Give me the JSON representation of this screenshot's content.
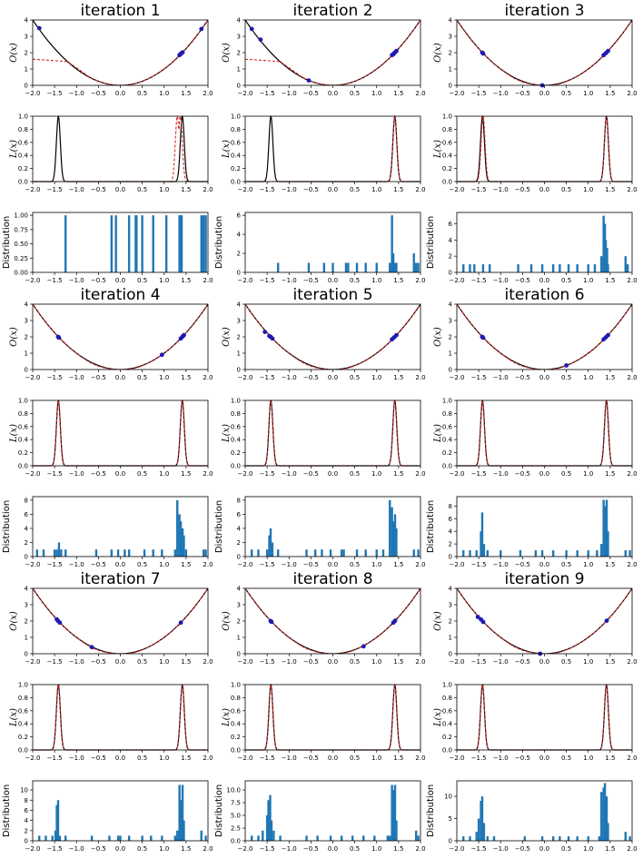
{
  "figure": {
    "description_free": true,
    "colors": {
      "true": "#000000",
      "surrogate": "#d62728",
      "points": "#1f1ab0",
      "bars": "#1f77b4"
    }
  },
  "chart_data": {
    "type": "grid",
    "xlim": [
      -2.0,
      2.0
    ],
    "x_ticks": [
      "−2.0",
      "−1.5",
      "−1.0",
      "−0.5",
      "0.0",
      "0.5",
      "1.0",
      "1.5",
      "2.0"
    ],
    "row_types": [
      "objective",
      "likelihood",
      "distribution"
    ],
    "objective_panel": {
      "ylabel": "O(x)",
      "ylim": [
        0,
        4
      ],
      "y_ticks": [
        "0",
        "1",
        "2",
        "3",
        "4"
      ],
      "true_function": "x^2"
    },
    "likelihood_panel": {
      "ylabel": "L(x)",
      "ylim": [
        0,
        1
      ],
      "y_ticks": [
        "0.0",
        "0.2",
        "0.4",
        "0.6",
        "0.8",
        "1.0"
      ],
      "peaks": [
        -1.414,
        1.414
      ]
    },
    "distribution_panel": {
      "ylabel": "Distribution"
    },
    "iterations": [
      {
        "title": "iteration 1",
        "points": [
          [
            -1.85,
            3.5
          ],
          [
            1.35,
            1.85
          ],
          [
            1.37,
            1.9
          ],
          [
            1.4,
            1.98
          ],
          [
            1.42,
            2.02
          ],
          [
            1.85,
            3.45
          ]
        ],
        "surrogate_note": "flat_left",
        "likelihood_red": [
          1.3,
          1.37
        ],
        "dist_ylim": [
          0,
          1.05
        ],
        "dist_ticks": [
          0,
          0.25,
          0.5,
          0.75,
          1.0
        ],
        "dist_tick_labels": [
          "0.00",
          "0.25",
          "0.50",
          "0.75",
          "1.00"
        ],
        "bars": [
          [
            -1.25,
            1
          ],
          [
            -0.2,
            1
          ],
          [
            -0.1,
            1
          ],
          [
            0.2,
            1
          ],
          [
            0.35,
            1
          ],
          [
            0.37,
            1
          ],
          [
            0.5,
            1
          ],
          [
            0.75,
            1
          ],
          [
            1.05,
            1
          ],
          [
            1.35,
            1
          ],
          [
            1.37,
            1
          ],
          [
            1.4,
            1
          ],
          [
            1.85,
            1
          ],
          [
            1.9,
            1
          ],
          [
            1.95,
            1
          ]
        ]
      },
      {
        "title": "iteration 2",
        "points": [
          [
            -1.85,
            3.45
          ],
          [
            -1.65,
            2.8
          ],
          [
            -0.55,
            0.3
          ],
          [
            1.35,
            1.85
          ],
          [
            1.38,
            1.9
          ],
          [
            1.4,
            1.97
          ],
          [
            1.42,
            2.02
          ],
          [
            1.45,
            2.1
          ]
        ],
        "surrogate_note": "flat_left",
        "likelihood_red": [
          1.414
        ],
        "dist_ylim": [
          0,
          6.3
        ],
        "dist_ticks": [
          0,
          2,
          4,
          6
        ],
        "dist_tick_labels": [
          "0",
          "2",
          "4",
          "6"
        ],
        "bars": [
          [
            -1.25,
            1
          ],
          [
            -0.55,
            1
          ],
          [
            -0.2,
            1
          ],
          [
            0.0,
            1
          ],
          [
            0.3,
            1
          ],
          [
            0.35,
            1
          ],
          [
            0.55,
            1
          ],
          [
            0.75,
            1
          ],
          [
            1.0,
            1
          ],
          [
            1.3,
            1
          ],
          [
            1.35,
            6
          ],
          [
            1.38,
            2
          ],
          [
            1.42,
            1
          ],
          [
            1.45,
            1
          ],
          [
            1.85,
            2
          ],
          [
            1.9,
            1
          ],
          [
            1.95,
            1
          ]
        ]
      },
      {
        "title": "iteration 3",
        "points": [
          [
            -1.42,
            2.0
          ],
          [
            -1.4,
            1.95
          ],
          [
            -0.05,
            0.0
          ],
          [
            1.35,
            1.85
          ],
          [
            1.4,
            1.97
          ],
          [
            1.45,
            2.1
          ]
        ],
        "surrogate_note": "fit",
        "likelihood_red": [
          -1.4,
          1.414
        ],
        "dist_ylim": [
          0,
          7.4
        ],
        "dist_ticks": [
          0,
          2,
          4,
          6
        ],
        "dist_tick_labels": [
          "0",
          "2",
          "4",
          "6"
        ],
        "bars": [
          [
            -1.85,
            1
          ],
          [
            -1.7,
            1
          ],
          [
            -1.6,
            1
          ],
          [
            -1.4,
            1
          ],
          [
            -1.25,
            1
          ],
          [
            -0.6,
            1
          ],
          [
            -0.3,
            1
          ],
          [
            -0.05,
            1
          ],
          [
            0.2,
            1
          ],
          [
            0.35,
            1
          ],
          [
            0.55,
            1
          ],
          [
            0.75,
            1
          ],
          [
            1.0,
            1
          ],
          [
            1.15,
            1
          ],
          [
            1.3,
            2
          ],
          [
            1.35,
            7
          ],
          [
            1.38,
            6
          ],
          [
            1.4,
            4
          ],
          [
            1.43,
            3
          ],
          [
            1.45,
            1
          ],
          [
            1.85,
            2
          ],
          [
            1.9,
            1
          ]
        ]
      },
      {
        "title": "iteration 4",
        "points": [
          [
            -1.42,
            2.0
          ],
          [
            -1.4,
            1.95
          ],
          [
            0.95,
            0.9
          ],
          [
            1.38,
            1.9
          ],
          [
            1.42,
            2.02
          ],
          [
            1.45,
            2.1
          ]
        ],
        "surrogate_note": "fit",
        "likelihood_red": [
          -1.414,
          1.414
        ],
        "dist_ylim": [
          0,
          8.5
        ],
        "dist_ticks": [
          0,
          2,
          4,
          6,
          8
        ],
        "dist_tick_labels": [
          "0",
          "2",
          "4",
          "6",
          "8"
        ],
        "bars": [
          [
            -1.9,
            1
          ],
          [
            -1.75,
            1
          ],
          [
            -1.5,
            1
          ],
          [
            -1.45,
            1
          ],
          [
            -1.4,
            2
          ],
          [
            -1.35,
            1
          ],
          [
            -1.25,
            1
          ],
          [
            -0.55,
            1
          ],
          [
            -0.2,
            1
          ],
          [
            -0.05,
            1
          ],
          [
            0.1,
            1
          ],
          [
            0.2,
            1
          ],
          [
            0.55,
            1
          ],
          [
            0.75,
            1
          ],
          [
            0.95,
            1
          ],
          [
            1.25,
            1
          ],
          [
            1.3,
            8
          ],
          [
            1.35,
            6
          ],
          [
            1.38,
            5
          ],
          [
            1.42,
            4
          ],
          [
            1.45,
            3
          ],
          [
            1.5,
            1
          ],
          [
            1.9,
            1
          ],
          [
            1.95,
            1
          ]
        ]
      },
      {
        "title": "iteration 5",
        "points": [
          [
            -1.55,
            2.3
          ],
          [
            -1.45,
            2.05
          ],
          [
            -1.42,
            2.0
          ],
          [
            -1.38,
            1.9
          ],
          [
            1.35,
            1.85
          ],
          [
            1.4,
            1.97
          ],
          [
            1.45,
            2.1
          ]
        ],
        "surrogate_note": "fit",
        "likelihood_red": [
          -1.414,
          1.414
        ],
        "dist_ylim": [
          0,
          8.5
        ],
        "dist_ticks": [
          0,
          2,
          4,
          6,
          8
        ],
        "dist_tick_labels": [
          "0",
          "2",
          "4",
          "6",
          "8"
        ],
        "bars": [
          [
            -1.85,
            1
          ],
          [
            -1.7,
            1
          ],
          [
            -1.5,
            1
          ],
          [
            -1.45,
            3
          ],
          [
            -1.42,
            4
          ],
          [
            -1.38,
            2
          ],
          [
            -1.25,
            1
          ],
          [
            -0.6,
            1
          ],
          [
            -0.4,
            1
          ],
          [
            -0.25,
            1
          ],
          [
            -0.05,
            1
          ],
          [
            0.2,
            1
          ],
          [
            0.25,
            1
          ],
          [
            0.55,
            1
          ],
          [
            0.75,
            1
          ],
          [
            1.0,
            1
          ],
          [
            1.15,
            1
          ],
          [
            1.3,
            8
          ],
          [
            1.35,
            7
          ],
          [
            1.38,
            5
          ],
          [
            1.42,
            6
          ],
          [
            1.45,
            4
          ],
          [
            1.85,
            1
          ],
          [
            1.95,
            1
          ]
        ]
      },
      {
        "title": "iteration 6",
        "points": [
          [
            -1.42,
            2.0
          ],
          [
            -1.4,
            1.95
          ],
          [
            0.5,
            0.25
          ],
          [
            1.35,
            1.85
          ],
          [
            1.4,
            1.97
          ],
          [
            1.45,
            2.1
          ]
        ],
        "surrogate_note": "fit",
        "likelihood_red": [
          -1.414,
          1.414
        ],
        "dist_ylim": [
          0,
          9.5
        ],
        "dist_ticks": [
          0,
          2,
          4,
          6,
          8
        ],
        "dist_tick_labels": [
          "0",
          "2",
          "4",
          "6",
          "8"
        ],
        "bars": [
          [
            -1.85,
            1
          ],
          [
            -1.7,
            1
          ],
          [
            -1.55,
            1
          ],
          [
            -1.45,
            4
          ],
          [
            -1.42,
            7
          ],
          [
            -1.38,
            2
          ],
          [
            -1.3,
            1
          ],
          [
            -1.0,
            1
          ],
          [
            -0.55,
            1
          ],
          [
            -0.2,
            1
          ],
          [
            -0.05,
            1
          ],
          [
            0.2,
            1
          ],
          [
            0.5,
            1
          ],
          [
            0.75,
            1
          ],
          [
            1.0,
            1
          ],
          [
            1.2,
            1
          ],
          [
            1.3,
            2
          ],
          [
            1.35,
            9
          ],
          [
            1.38,
            8
          ],
          [
            1.42,
            9
          ],
          [
            1.45,
            4
          ],
          [
            1.85,
            1
          ],
          [
            1.95,
            1
          ]
        ]
      },
      {
        "title": "iteration 7",
        "points": [
          [
            -1.45,
            2.1
          ],
          [
            -1.42,
            2.0
          ],
          [
            -1.38,
            1.9
          ],
          [
            -0.65,
            0.4
          ],
          [
            1.38,
            1.9
          ]
        ],
        "surrogate_note": "fit",
        "likelihood_red": [
          -1.414,
          1.414
        ],
        "dist_ylim": [
          0,
          11.8
        ],
        "dist_ticks": [
          0,
          2,
          4,
          6,
          8,
          10
        ],
        "dist_tick_labels": [
          "0",
          "2",
          "4",
          "6",
          "8",
          "10"
        ],
        "bars": [
          [
            -1.85,
            1
          ],
          [
            -1.7,
            1
          ],
          [
            -1.55,
            1
          ],
          [
            -1.48,
            2
          ],
          [
            -1.45,
            7
          ],
          [
            -1.42,
            8
          ],
          [
            -1.38,
            1
          ],
          [
            -1.25,
            1
          ],
          [
            -0.65,
            1
          ],
          [
            -0.25,
            1
          ],
          [
            -0.05,
            1
          ],
          [
            0.0,
            1
          ],
          [
            0.2,
            1
          ],
          [
            0.5,
            1
          ],
          [
            0.7,
            1
          ],
          [
            0.95,
            1
          ],
          [
            1.25,
            1
          ],
          [
            1.3,
            2
          ],
          [
            1.35,
            11
          ],
          [
            1.38,
            8
          ],
          [
            1.42,
            11
          ],
          [
            1.45,
            4
          ],
          [
            1.85,
            2
          ],
          [
            1.95,
            1
          ]
        ]
      },
      {
        "title": "iteration 8",
        "points": [
          [
            -1.42,
            2.0
          ],
          [
            -1.4,
            1.95
          ],
          [
            0.7,
            0.45
          ],
          [
            1.38,
            1.9
          ],
          [
            1.42,
            2.02
          ]
        ],
        "surrogate_note": "fit",
        "likelihood_red": [
          -1.414,
          1.414
        ],
        "dist_ylim": [
          0,
          11.8
        ],
        "dist_ticks": [
          0,
          2.5,
          5.0,
          7.5,
          10.0
        ],
        "dist_tick_labels": [
          "0.0",
          "2.5",
          "5.0",
          "7.5",
          "10.0"
        ],
        "bars": [
          [
            -1.85,
            1
          ],
          [
            -1.7,
            1
          ],
          [
            -1.6,
            2
          ],
          [
            -1.5,
            5
          ],
          [
            -1.47,
            8
          ],
          [
            -1.43,
            9
          ],
          [
            -1.4,
            4
          ],
          [
            -1.35,
            2
          ],
          [
            -1.2,
            1
          ],
          [
            -0.6,
            1
          ],
          [
            -0.35,
            1
          ],
          [
            -0.05,
            1
          ],
          [
            0.2,
            1
          ],
          [
            0.45,
            1
          ],
          [
            0.7,
            1
          ],
          [
            0.95,
            1
          ],
          [
            1.25,
            1
          ],
          [
            1.3,
            1
          ],
          [
            1.35,
            11
          ],
          [
            1.38,
            10
          ],
          [
            1.42,
            11
          ],
          [
            1.45,
            4
          ],
          [
            1.9,
            2
          ],
          [
            1.95,
            1
          ]
        ]
      },
      {
        "title": "iteration 9",
        "points": [
          [
            -1.52,
            2.25
          ],
          [
            -1.45,
            2.1
          ],
          [
            -1.4,
            1.95
          ],
          [
            -0.1,
            0.0
          ],
          [
            1.42,
            2.02
          ]
        ],
        "surrogate_note": "fit",
        "likelihood_red": [
          -1.414,
          1.414
        ],
        "dist_ylim": [
          0,
          13.5
        ],
        "dist_ticks": [
          0,
          5,
          10
        ],
        "dist_tick_labels": [
          "0",
          "5",
          "10"
        ],
        "bars": [
          [
            -1.85,
            1
          ],
          [
            -1.7,
            1
          ],
          [
            -1.55,
            2
          ],
          [
            -1.5,
            5
          ],
          [
            -1.45,
            9
          ],
          [
            -1.42,
            10
          ],
          [
            -1.38,
            4
          ],
          [
            -1.3,
            1
          ],
          [
            -1.15,
            1
          ],
          [
            -0.45,
            1
          ],
          [
            -0.05,
            1
          ],
          [
            0.2,
            1
          ],
          [
            0.35,
            1
          ],
          [
            0.55,
            1
          ],
          [
            0.75,
            1
          ],
          [
            1.0,
            1
          ],
          [
            1.25,
            1
          ],
          [
            1.3,
            11
          ],
          [
            1.35,
            12
          ],
          [
            1.38,
            13
          ],
          [
            1.42,
            10
          ],
          [
            1.45,
            4
          ],
          [
            1.85,
            2
          ],
          [
            1.95,
            1
          ]
        ]
      }
    ]
  }
}
